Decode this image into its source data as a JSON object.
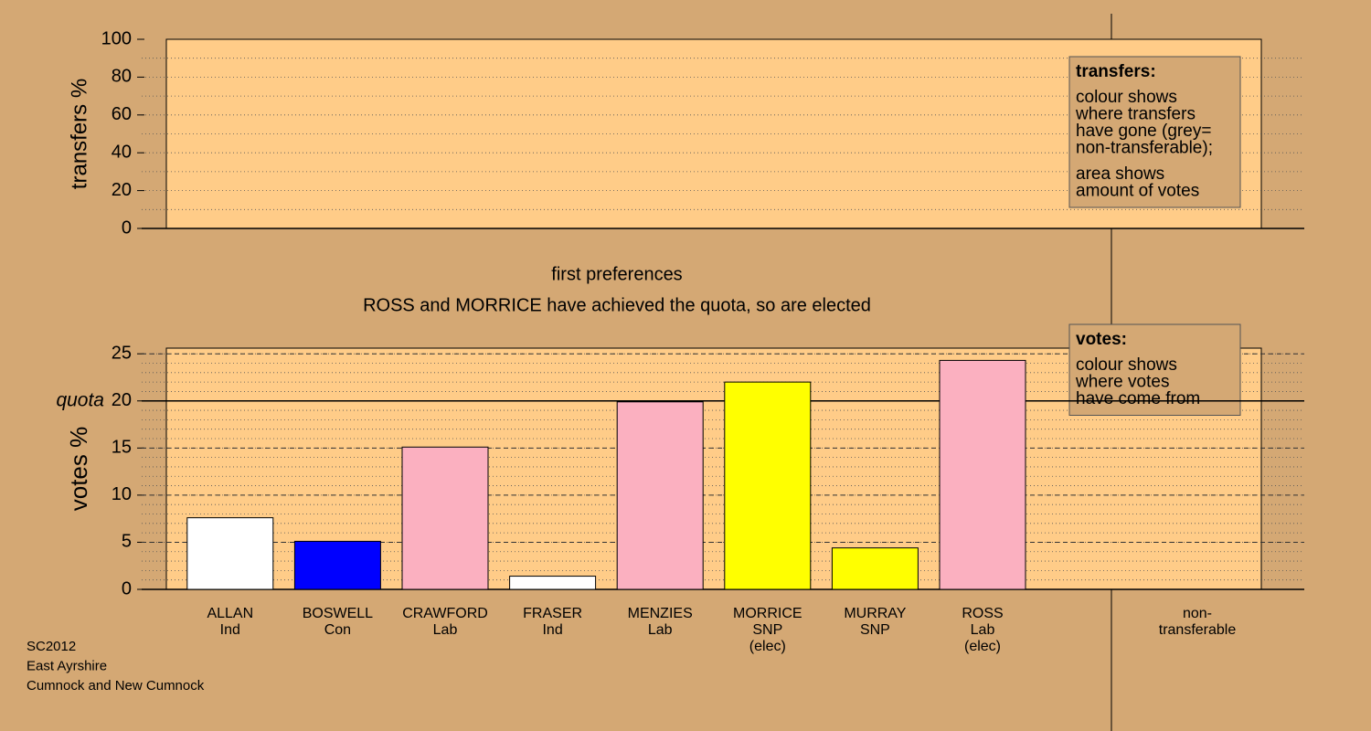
{
  "chart_data": [
    {
      "type": "transfers",
      "ylabel": "transfers %",
      "ylim": [
        0,
        100
      ],
      "yticks": [
        0,
        20,
        40,
        60,
        80,
        100
      ],
      "minor_step": 10,
      "legend": {
        "title": "transfers:",
        "paragraphs": [
          [
            "colour shows",
            "where transfers",
            "have gone (grey=",
            "non-transferable);"
          ],
          [
            "area shows",
            "amount of votes"
          ]
        ]
      }
    },
    {
      "type": "bar",
      "title": "first preferences",
      "subtitle": "ROSS and MORRICE have achieved the quota, so are elected",
      "ylabel": "votes %",
      "ylim": [
        0,
        25.6
      ],
      "yticks": [
        0,
        5,
        10,
        15,
        20,
        25
      ],
      "minor_step": 1,
      "quota": 20,
      "quota_label": "quota",
      "categories": [
        [
          "ALLAN",
          "Ind"
        ],
        [
          "BOSWELL",
          "Con"
        ],
        [
          "CRAWFORD",
          "Lab"
        ],
        [
          "FRASER",
          "Ind"
        ],
        [
          "MENZIES",
          "Lab"
        ],
        [
          "MORRICE",
          "SNP",
          "(elec)"
        ],
        [
          "MURRAY",
          "SNP"
        ],
        [
          "ROSS",
          "Lab",
          "(elec)"
        ]
      ],
      "values": [
        7.6,
        5.1,
        15.1,
        1.4,
        19.9,
        22.0,
        4.4,
        24.3
      ],
      "colors": [
        "#ffffff",
        "#0000ff",
        "#fbb0c0",
        "#ffffff",
        "#fbb0c0",
        "#ffff00",
        "#ffff00",
        "#fbb0c0"
      ],
      "nontransferable_label": [
        "non-",
        "transferable"
      ],
      "legend": {
        "title": "votes:",
        "paragraphs": [
          [
            "colour shows",
            "where votes",
            "have come from"
          ]
        ]
      }
    }
  ],
  "footer": [
    "SC2012",
    "East Ayrshire",
    "Cumnock and New Cumnock"
  ]
}
